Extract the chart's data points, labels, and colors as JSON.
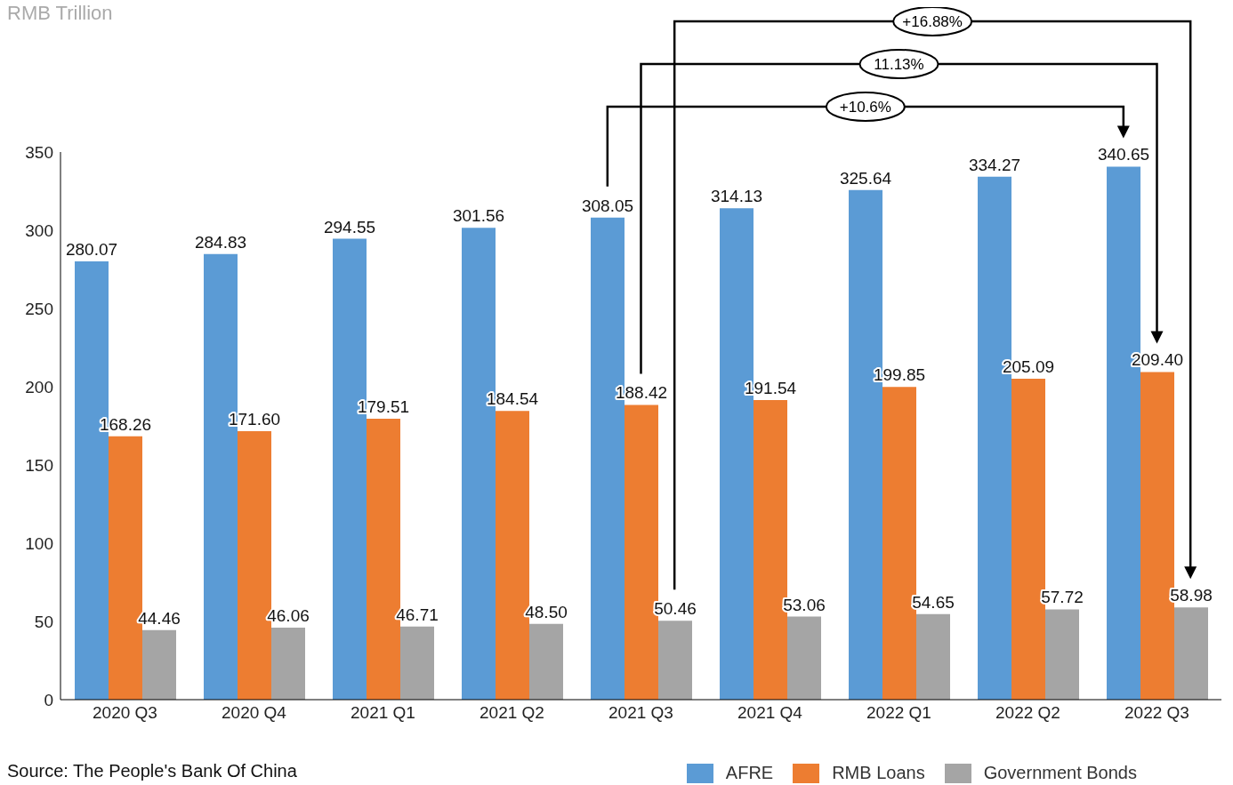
{
  "chart_data": {
    "type": "bar",
    "categories": [
      "2020 Q3",
      "2020 Q4",
      "2021 Q1",
      "2021 Q2",
      "2021 Q3",
      "2021 Q4",
      "2022 Q1",
      "2022 Q2",
      "2022 Q3"
    ],
    "series": [
      {
        "name": "AFRE",
        "color": "#5b9bd5",
        "values": [
          280.07,
          284.83,
          294.55,
          301.56,
          308.05,
          314.13,
          325.64,
          334.27,
          340.65
        ],
        "value_labels": [
          "280.07",
          "284.83",
          "294.55",
          "301.56",
          "308.05",
          "314.13",
          "325.64",
          "334.27",
          "340.65"
        ]
      },
      {
        "name": "RMB Loans",
        "color": "#ed7d31",
        "values": [
          168.26,
          171.6,
          179.51,
          184.54,
          188.42,
          191.54,
          199.85,
          205.09,
          209.4
        ],
        "value_labels": [
          "168.26",
          "171.60",
          "179.51",
          "184.54",
          "188.42",
          "191.54",
          "199.85",
          "205.09",
          "209.40"
        ]
      },
      {
        "name": "Government Bonds",
        "color": "#a5a5a5",
        "values": [
          44.46,
          46.06,
          46.71,
          48.5,
          50.46,
          53.06,
          54.65,
          57.72,
          58.98
        ],
        "value_labels": [
          "44.46",
          "46.06",
          "46.71",
          "48.50",
          "50.46",
          "53.06",
          "54.65",
          "57.72",
          "58.98"
        ]
      }
    ],
    "ylim": [
      0,
      350
    ],
    "yticks": [
      0,
      50,
      100,
      150,
      200,
      250,
      300,
      350
    ],
    "grid": false,
    "legend": "bottom right",
    "annotations": [
      "+10.6%",
      "11.13%",
      "+16.88%",
      "RMB Trillion",
      "Source: The People's Bank Of China"
    ]
  }
}
